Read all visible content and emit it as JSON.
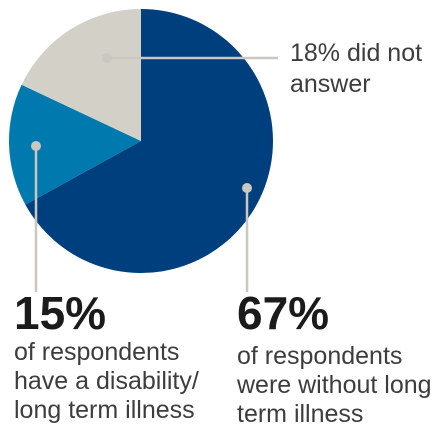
{
  "chart_data": {
    "type": "pie",
    "slices": [
      {
        "value": 67,
        "color": "#003f7d"
      },
      {
        "value": 15,
        "color": "#0079ae"
      },
      {
        "value": 18,
        "color": "#d3d0c7"
      }
    ],
    "annotations": {
      "no_answer": {
        "text": "18% did not\nanswer"
      },
      "disability": {
        "percent": "15%",
        "text": "of respondents\nhave a disability/\nlong term illness"
      },
      "no_illness": {
        "percent": "67%",
        "text": "of respondents\nwere without long\nterm illness"
      }
    },
    "leader_color": "#c9c7c0"
  }
}
